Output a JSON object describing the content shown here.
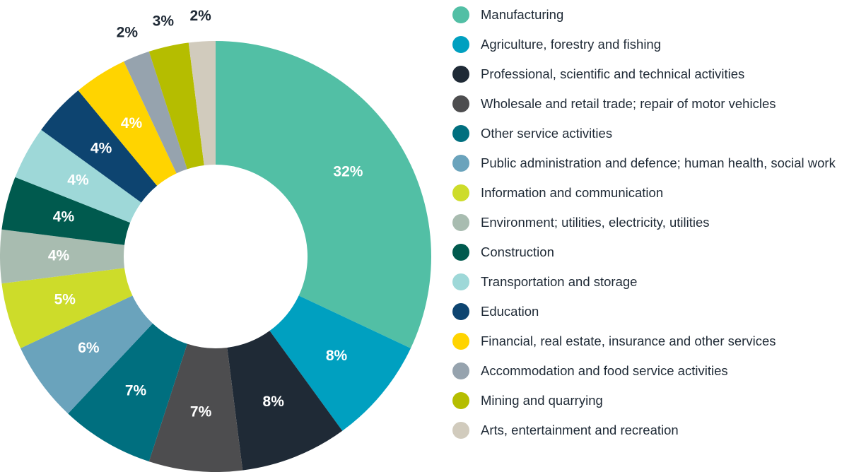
{
  "chart_data": {
    "type": "donut",
    "categories": [
      "Manufacturing",
      "Agriculture, forestry and fishing",
      "Professional, scientific and technical activities",
      "Wholesale and retail trade; repair of motor vehicles",
      "Other service activities",
      "Public administration and defence; human health, social work",
      "Information and communication",
      "Environment; utilities, electricity, utilities",
      "Construction",
      "Transportation and storage",
      "Education",
      "Financial, real estate, insurance and other services",
      "Accommodation and food service activities",
      "Mining and quarrying",
      "Arts, entertainment and recreation"
    ],
    "values": [
      32,
      8,
      8,
      7,
      7,
      6,
      5,
      4,
      4,
      4,
      4,
      4,
      2,
      3,
      2
    ],
    "value_labels": [
      "32%",
      "8%",
      "8%",
      "7%",
      "7%",
      "6%",
      "5%",
      "4%",
      "4%",
      "4%",
      "4%",
      "4%",
      "2%",
      "3%",
      "2%"
    ],
    "colors": [
      "#52bfa5",
      "#00a0c0",
      "#1f2a36",
      "#4d4d4f",
      "#006f7f",
      "#6aa3bc",
      "#cddc2a",
      "#a8bcb0",
      "#005a4e",
      "#9ed8d8",
      "#0d4470",
      "#ffd400",
      "#96a3ae",
      "#b5bd00",
      "#d1cbbd"
    ]
  }
}
